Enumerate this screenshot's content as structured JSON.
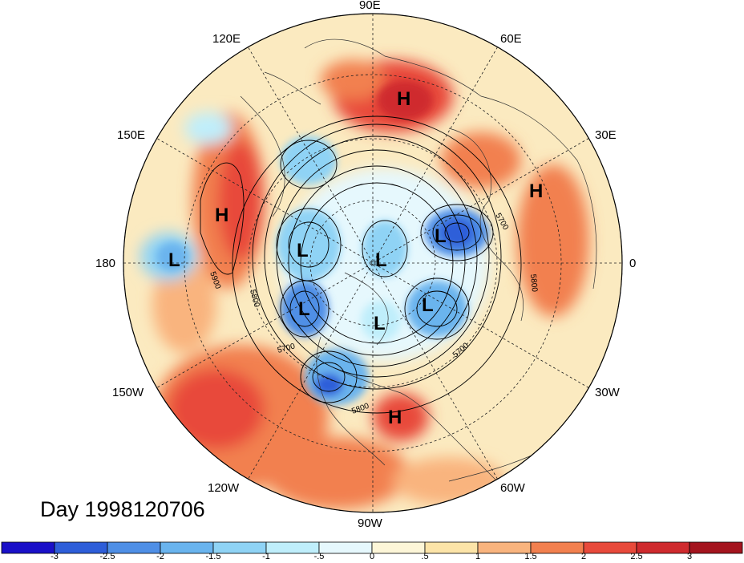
{
  "title": "Day 1998120706",
  "longitude_labels": [
    {
      "text": "90E"
    },
    {
      "text": "60E"
    },
    {
      "text": "120E"
    },
    {
      "text": "30E"
    },
    {
      "text": "150E"
    },
    {
      "text": "180"
    },
    {
      "text": "0"
    },
    {
      "text": "150W"
    },
    {
      "text": "30W"
    },
    {
      "text": "120W"
    },
    {
      "text": "60W"
    },
    {
      "text": "90W"
    }
  ],
  "pressure_centers": [
    {
      "type": "H"
    },
    {
      "type": "H"
    },
    {
      "type": "H"
    },
    {
      "type": "H"
    },
    {
      "type": "L"
    },
    {
      "type": "L"
    },
    {
      "type": "L"
    },
    {
      "type": "L"
    },
    {
      "type": "L"
    },
    {
      "type": "L"
    },
    {
      "type": "L"
    }
  ],
  "contour_labels": [
    "5900",
    "5800",
    "5700",
    "5700",
    "5800",
    "5700",
    "5800"
  ],
  "colorbar": {
    "ticks": [
      "-3",
      "-2.5",
      "-2",
      "-1.5",
      "-1",
      "-.5",
      "0",
      ".5",
      "1",
      "1.5",
      "2",
      "2.5",
      "3"
    ],
    "colors": [
      "#1a10c8",
      "#2e5ed9",
      "#4f8fe6",
      "#6ab4ee",
      "#8fd3f5",
      "#bfeefb",
      "#e6f8fd",
      "#fdf6d8",
      "#fce4a8",
      "#f9b47e",
      "#f2804f",
      "#e84a3b",
      "#cf2a2e",
      "#a4141e"
    ]
  }
}
